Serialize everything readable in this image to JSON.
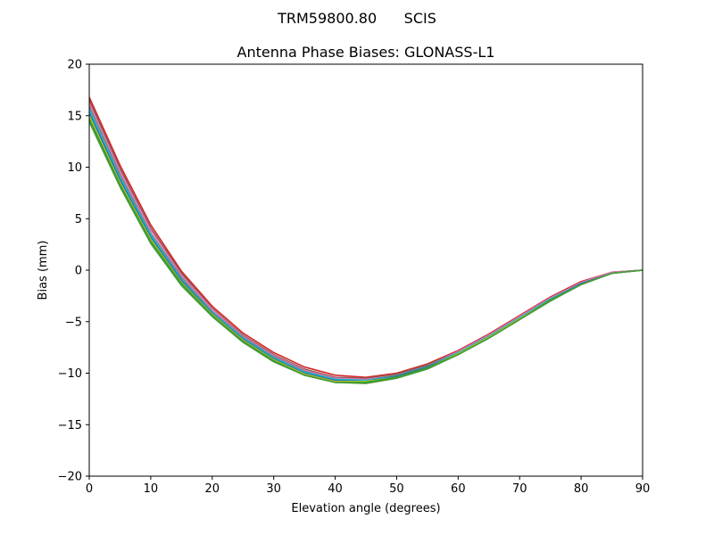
{
  "chart_data": {
    "type": "line",
    "suptitle": "TRM59800.80      SCIS",
    "title": "Antenna Phase Biases: GLONASS-L1",
    "xlabel": "Elevation angle (degrees)",
    "ylabel": "Bias (mm)",
    "xlim": [
      0,
      90
    ],
    "ylim": [
      -20,
      20
    ],
    "xticks": [
      0,
      10,
      20,
      30,
      40,
      50,
      60,
      70,
      80,
      90
    ],
    "yticks": [
      -20,
      -15,
      -10,
      -5,
      0,
      5,
      10,
      15,
      20
    ],
    "xtick_labels": [
      "0",
      "10",
      "20",
      "30",
      "40",
      "50",
      "60",
      "70",
      "80",
      "90"
    ],
    "ytick_labels": [
      "−20",
      "−15",
      "−10",
      "−5",
      "0",
      "5",
      "10",
      "15",
      "20"
    ],
    "grid": false,
    "x": [
      0,
      5,
      10,
      15,
      20,
      25,
      30,
      35,
      40,
      45,
      50,
      55,
      60,
      65,
      70,
      75,
      80,
      85,
      90
    ],
    "series": [
      {
        "color": "#d62728",
        "values": [
          16.8,
          10.2,
          4.4,
          -0.1,
          -3.5,
          -6.1,
          -8.0,
          -9.4,
          -10.2,
          -10.4,
          -10.0,
          -9.1,
          -7.8,
          -6.2,
          -4.4,
          -2.6,
          -1.1,
          -0.2,
          0.0
        ]
      },
      {
        "color": "#8c564b",
        "values": [
          16.5,
          9.9,
          4.1,
          -0.3,
          -3.7,
          -6.3,
          -8.2,
          -9.6,
          -10.4,
          -10.5,
          -10.1,
          -9.2,
          -7.9,
          -6.3,
          -4.5,
          -2.7,
          -1.2,
          -0.2,
          0.0
        ]
      },
      {
        "color": "#e377c2",
        "values": [
          16.2,
          9.6,
          3.9,
          -0.5,
          -3.8,
          -6.4,
          -8.3,
          -9.7,
          -10.5,
          -10.6,
          -10.2,
          -9.3,
          -7.9,
          -6.3,
          -4.5,
          -2.7,
          -1.2,
          -0.2,
          0.0
        ]
      },
      {
        "color": "#7f7f7f",
        "values": [
          15.9,
          9.3,
          3.6,
          -0.7,
          -4.0,
          -6.5,
          -8.4,
          -9.8,
          -10.6,
          -10.7,
          -10.2,
          -9.3,
          -8.0,
          -6.4,
          -4.6,
          -2.8,
          -1.3,
          -0.3,
          0.0
        ]
      },
      {
        "color": "#17becf",
        "values": [
          15.6,
          9.0,
          3.4,
          -0.9,
          -4.1,
          -6.6,
          -8.5,
          -9.9,
          -10.6,
          -10.7,
          -10.3,
          -9.4,
          -8.0,
          -6.4,
          -4.6,
          -2.8,
          -1.3,
          -0.3,
          0.0
        ]
      },
      {
        "color": "#1f77b4",
        "values": [
          15.3,
          8.8,
          3.2,
          -1.0,
          -4.2,
          -6.7,
          -8.6,
          -10.0,
          -10.7,
          -10.8,
          -10.3,
          -9.4,
          -8.1,
          -6.5,
          -4.7,
          -2.9,
          -1.3,
          -0.3,
          0.0
        ]
      },
      {
        "color": "#bcbd22",
        "values": [
          15.0,
          8.5,
          3.0,
          -1.2,
          -4.3,
          -6.8,
          -8.7,
          -10.1,
          -10.8,
          -10.8,
          -10.4,
          -9.5,
          -8.1,
          -6.5,
          -4.7,
          -2.9,
          -1.4,
          -0.3,
          0.0
        ]
      },
      {
        "color": "#2ca02c",
        "values": [
          14.7,
          8.3,
          2.8,
          -1.3,
          -4.4,
          -6.9,
          -8.8,
          -10.2,
          -10.9,
          -10.9,
          -10.4,
          -9.5,
          -8.2,
          -6.6,
          -4.8,
          -2.9,
          -1.4,
          -0.3,
          0.0
        ]
      },
      {
        "color": "#4a9a3a",
        "values": [
          14.4,
          8.1,
          2.6,
          -1.5,
          -4.5,
          -7.0,
          -8.9,
          -10.2,
          -10.9,
          -11.0,
          -10.5,
          -9.6,
          -8.2,
          -6.6,
          -4.8,
          -3.0,
          -1.4,
          -0.3,
          0.0
        ]
      }
    ]
  }
}
